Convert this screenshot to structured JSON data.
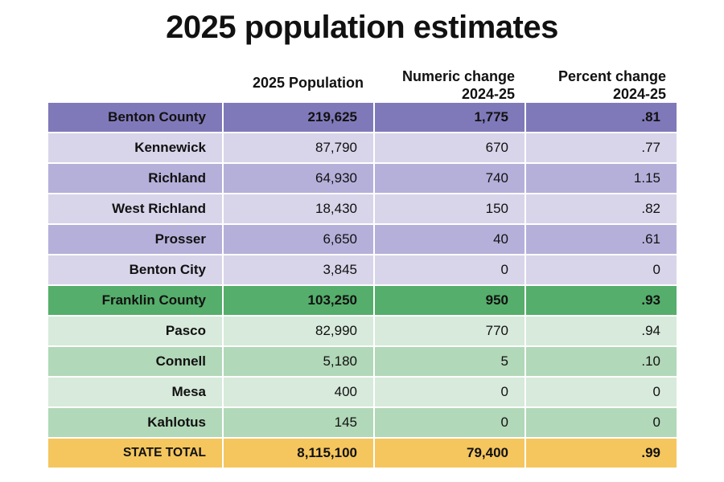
{
  "title": "2025 population estimates",
  "headers": {
    "population": "2025 Population",
    "numeric_change": "Numeric change\n2024-25",
    "percent_change": "Percent change\n2024-25"
  },
  "colors": {
    "benton_county": "#8079b9",
    "benton_light": "#d8d5ea",
    "benton_mid": "#b5b0da",
    "franklin_county": "#55ae6b",
    "franklin_light": "#d7eadb",
    "franklin_mid": "#b1d8b8",
    "state_total": "#f5c65e"
  },
  "chart_data": {
    "type": "table",
    "title": "2025 population estimates",
    "columns": [
      "",
      "2025 Population",
      "Numeric change 2024-25",
      "Percent change 2024-25"
    ],
    "rows": [
      {
        "name": "Benton County",
        "population": "219,625",
        "numeric_change": "1,775",
        "percent_change": ".81",
        "kind": "county",
        "color": "#8079b9"
      },
      {
        "name": "Kennewick",
        "population": "87,790",
        "numeric_change": "670",
        "percent_change": ".77",
        "kind": "city",
        "color": "#d8d5ea"
      },
      {
        "name": "Richland",
        "population": "64,930",
        "numeric_change": "740",
        "percent_change": "1.15",
        "kind": "city",
        "color": "#b5b0da"
      },
      {
        "name": "West Richland",
        "population": "18,430",
        "numeric_change": "150",
        "percent_change": ".82",
        "kind": "city",
        "color": "#d8d5ea"
      },
      {
        "name": "Prosser",
        "population": "6,650",
        "numeric_change": "40",
        "percent_change": ".61",
        "kind": "city",
        "color": "#b5b0da"
      },
      {
        "name": "Benton City",
        "population": "3,845",
        "numeric_change": "0",
        "percent_change": "0",
        "kind": "city",
        "color": "#d8d5ea"
      },
      {
        "name": "Franklin County",
        "population": "103,250",
        "numeric_change": "950",
        "percent_change": ".93",
        "kind": "county",
        "color": "#55ae6b"
      },
      {
        "name": "Pasco",
        "population": "82,990",
        "numeric_change": "770",
        "percent_change": ".94",
        "kind": "city",
        "color": "#d7eadb"
      },
      {
        "name": "Connell",
        "population": "5,180",
        "numeric_change": "5",
        "percent_change": ".10",
        "kind": "city",
        "color": "#b1d8b8"
      },
      {
        "name": "Mesa",
        "population": "400",
        "numeric_change": "0",
        "percent_change": "0",
        "kind": "city",
        "color": "#d7eadb"
      },
      {
        "name": "Kahlotus",
        "population": "145",
        "numeric_change": "0",
        "percent_change": "0",
        "kind": "city",
        "color": "#b1d8b8"
      },
      {
        "name": "STATE TOTAL",
        "population": "8,115,100",
        "numeric_change": "79,400",
        "percent_change": ".99",
        "kind": "total",
        "color": "#f5c65e"
      }
    ]
  }
}
